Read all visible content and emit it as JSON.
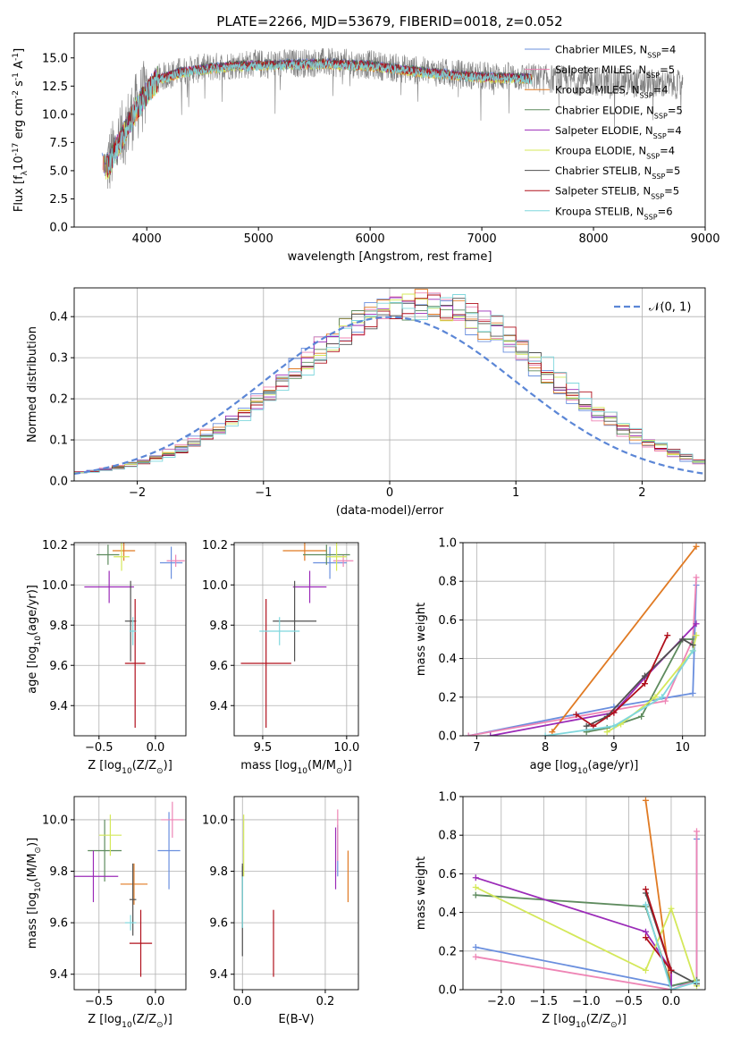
{
  "figure": {
    "title": "PLATE=2266, MJD=53679, FIBERID=0018, z=0.052"
  },
  "model_colors": [
    "#6a8fde",
    "#ee85b5",
    "#e07a23",
    "#5e8b5e",
    "#9b2bb8",
    "#d4e85a",
    "#505050",
    "#b0101c",
    "#7fd7dd"
  ],
  "chart_data": [
    {
      "id": "spectrum",
      "type": "line",
      "title": "PLATE=2266, MJD=53679, FIBERID=0018, z=0.052",
      "xlabel": "wavelength [Angstrom, rest frame]",
      "ylabel": "Flux [f$_\\lambda$10$^{-17}$ erg cm$^{-2}$ s$^{-1}$ A$^{-1}$]",
      "xlim": [
        3350,
        9000
      ],
      "ylim": [
        0,
        17.2
      ],
      "xticks": [
        4000,
        5000,
        6000,
        7000,
        8000,
        9000
      ],
      "yticks": [
        0.0,
        2.5,
        5.0,
        7.5,
        10.0,
        12.5,
        15.0
      ],
      "grid": false,
      "legend_position": "right",
      "legend": [
        "Chabrier MILES, N$_{SSP}$=4",
        "Salpeter MILES, N$_{SSP}$=5",
        "Kroupa MILES, N$_{SSP}$=4",
        "Chabrier ELODIE, N$_{SSP}$=5",
        "Salpeter ELODIE, N$_{SSP}$=4",
        "Kroupa ELODIE, N$_{SSP}$=4",
        "Chabrier STELIB, N$_{SSP}$=5",
        "Salpeter STELIB, N$_{SSP}$=5",
        "Kroupa STELIB, N$_{SSP}$=6"
      ],
      "continuum": {
        "x": [
          3650,
          3700,
          3800,
          3900,
          4000,
          4100,
          4300,
          4500,
          4800,
          5200,
          5600,
          6000,
          6500,
          7000,
          7400,
          7800,
          8300,
          8800
        ],
        "y": [
          5.5,
          6.5,
          8.5,
          10.5,
          12.0,
          13.2,
          13.8,
          14.1,
          14.4,
          14.5,
          14.6,
          14.4,
          13.8,
          13.4,
          13.3,
          13.0,
          12.8,
          12.6
        ]
      },
      "data_range": [
        3640,
        8800
      ],
      "model_range": [
        3600,
        7450
      ]
    },
    {
      "id": "residuals",
      "type": "line",
      "xlabel": "(data-model)/error",
      "ylabel": "Normed distribution",
      "xlim": [
        -2.5,
        2.5
      ],
      "ylim": [
        0,
        0.47
      ],
      "xticks": [
        -2,
        -1,
        0,
        1,
        2
      ],
      "yticks": [
        0.0,
        0.1,
        0.2,
        0.3,
        0.4
      ],
      "grid": true,
      "legend_position": "top-right",
      "series": [
        {
          "name": "$\\mathcal{N}(0,1)$",
          "mean": 0,
          "sigma": 1,
          "style": "dashed"
        }
      ],
      "histogram_peak": 0.42,
      "histogram_center": 0.25,
      "histogram_sigma": 1.0,
      "bin_width": 0.1
    },
    {
      "id": "age_vs_Z",
      "type": "scatter",
      "xlabel": "Z [log$_{10}$(Z/Z$_\\odot$)]",
      "ylabel": "age  [log$_{10}$(age/yr)]",
      "xlim": [
        -0.72,
        0.27
      ],
      "ylim": [
        9.25,
        10.21
      ],
      "xticks": [
        -0.5,
        0.0
      ],
      "yticks": [
        9.4,
        9.6,
        9.8,
        10.0,
        10.2
      ],
      "points": [
        {
          "x": 0.14,
          "y": 10.11,
          "xerr": 0.1,
          "yerr": 0.08
        },
        {
          "x": 0.18,
          "y": 10.12,
          "xerr": 0.08,
          "yerr": 0.03
        },
        {
          "x": -0.28,
          "y": 10.17,
          "xerr": 0.1,
          "yerr": 0.05
        },
        {
          "x": -0.42,
          "y": 10.15,
          "xerr": 0.1,
          "yerr": 0.05
        },
        {
          "x": -0.41,
          "y": 9.99,
          "xerr": 0.22,
          "yerr": 0.08
        },
        {
          "x": -0.3,
          "y": 10.14,
          "xerr": 0.07,
          "yerr": 0.07
        },
        {
          "x": -0.22,
          "y": 9.82,
          "xerr": 0.05,
          "yerr": 0.2
        },
        {
          "x": -0.18,
          "y": 9.61,
          "xerr": 0.09,
          "yerr": 0.32
        },
        {
          "x": -0.2,
          "y": 9.77,
          "xerr": 0.03,
          "yerr": 0.07
        }
      ]
    },
    {
      "id": "age_vs_mass",
      "type": "scatter",
      "xlabel": "mass [log$_{10}$(M/M$_\\odot$)]",
      "ylabel": "",
      "xlim": [
        9.33,
        10.07
      ],
      "ylim": [
        9.25,
        10.21
      ],
      "xticks": [
        9.5,
        10.0
      ],
      "yticks": [
        9.4,
        9.6,
        9.8,
        10.0,
        10.2
      ],
      "points": [
        {
          "x": 9.9,
          "y": 10.11,
          "xerr": 0.1,
          "yerr": 0.08
        },
        {
          "x": 9.98,
          "y": 10.12,
          "xerr": 0.06,
          "yerr": 0.03
        },
        {
          "x": 9.75,
          "y": 10.17,
          "xerr": 0.13,
          "yerr": 0.05
        },
        {
          "x": 9.88,
          "y": 10.15,
          "xerr": 0.14,
          "yerr": 0.05
        },
        {
          "x": 9.78,
          "y": 9.99,
          "xerr": 0.1,
          "yerr": 0.08
        },
        {
          "x": 9.94,
          "y": 10.14,
          "xerr": 0.06,
          "yerr": 0.07
        },
        {
          "x": 9.69,
          "y": 9.82,
          "xerr": 0.13,
          "yerr": 0.2
        },
        {
          "x": 9.52,
          "y": 9.61,
          "xerr": 0.15,
          "yerr": 0.32
        },
        {
          "x": 9.6,
          "y": 9.77,
          "xerr": 0.12,
          "yerr": 0.07
        }
      ]
    },
    {
      "id": "weight_vs_age",
      "type": "line",
      "xlabel": "age  [log$_{10}$(age/yr)]",
      "ylabel": "mass weight",
      "xlim": [
        6.8,
        10.33
      ],
      "ylim": [
        0,
        1.0
      ],
      "xticks": [
        7,
        8,
        9,
        10
      ],
      "yticks": [
        0.0,
        0.2,
        0.4,
        0.6,
        0.8,
        1.0
      ],
      "grid": true,
      "series": [
        {
          "x": [
            6.88,
            9.0,
            10.15,
            10.2
          ],
          "y": [
            0.0,
            0.15,
            0.22,
            0.78
          ]
        },
        {
          "x": [
            6.88,
            9.75,
            10.15,
            10.2
          ],
          "y": [
            0.0,
            0.18,
            0.5,
            0.82
          ]
        },
        {
          "x": [
            8.1,
            10.2
          ],
          "y": [
            0.02,
            0.98
          ]
        },
        {
          "x": [
            8.6,
            8.9,
            9.4,
            10.0,
            10.15
          ],
          "y": [
            0.02,
            0.04,
            0.1,
            0.5,
            0.5
          ]
        },
        {
          "x": [
            7.2,
            9.0,
            9.45,
            10.2
          ],
          "y": [
            0.0,
            0.12,
            0.3,
            0.58
          ]
        },
        {
          "x": [
            8.9,
            9.1,
            9.6,
            10.15,
            10.2
          ],
          "y": [
            0.02,
            0.06,
            0.2,
            0.44,
            0.52
          ]
        },
        {
          "x": [
            8.6,
            8.9,
            9.45,
            10.0,
            10.15
          ],
          "y": [
            0.05,
            0.1,
            0.31,
            0.5,
            0.47
          ]
        },
        {
          "x": [
            8.45,
            8.7,
            9.0,
            9.45,
            9.78
          ],
          "y": [
            0.11,
            0.05,
            0.12,
            0.27,
            0.52
          ]
        },
        {
          "x": [
            8.0,
            9.0,
            9.7,
            10.15
          ],
          "y": [
            0.0,
            0.05,
            0.2,
            0.44
          ]
        }
      ]
    },
    {
      "id": "mass_vs_Z",
      "type": "scatter",
      "xlabel": "Z [log$_{10}$(Z/Z$_\\odot$)]",
      "ylabel": "mass [log$_{10}$(M/M$_\\odot$)]",
      "xlim": [
        -0.72,
        0.27
      ],
      "ylim": [
        9.34,
        10.09
      ],
      "xticks": [
        -0.5,
        0.0
      ],
      "yticks": [
        9.4,
        9.6,
        9.8,
        10.0
      ],
      "points": [
        {
          "x": 0.12,
          "y": 9.88,
          "xerr": 0.1,
          "yerr": 0.15
        },
        {
          "x": 0.15,
          "y": 10.0,
          "xerr": 0.1,
          "yerr": 0.07
        },
        {
          "x": -0.19,
          "y": 9.75,
          "xerr": 0.12,
          "yerr": 0.08
        },
        {
          "x": -0.45,
          "y": 9.88,
          "xerr": 0.15,
          "yerr": 0.12
        },
        {
          "x": -0.55,
          "y": 9.78,
          "xerr": 0.22,
          "yerr": 0.1
        },
        {
          "x": -0.4,
          "y": 9.94,
          "xerr": 0.1,
          "yerr": 0.08
        },
        {
          "x": -0.2,
          "y": 9.69,
          "xerr": 0.03,
          "yerr": 0.14
        },
        {
          "x": -0.13,
          "y": 9.52,
          "xerr": 0.1,
          "yerr": 0.13
        },
        {
          "x": -0.22,
          "y": 9.6,
          "xerr": 0.05,
          "yerr": 0.03
        }
      ]
    },
    {
      "id": "mass_vs_ebv",
      "type": "scatter",
      "xlabel": "E(B-V)",
      "ylabel": "",
      "xlim": [
        -0.02,
        0.28
      ],
      "ylim": [
        9.34,
        10.09
      ],
      "xticks": [
        0.0,
        0.2
      ],
      "yticks": [
        9.4,
        9.6,
        9.8,
        10.0
      ],
      "points": [
        {
          "x": 0.23,
          "y": 9.88,
          "xerr": 0.0,
          "yerr": 0.1
        },
        {
          "x": 0.23,
          "y": 9.94,
          "xerr": 0.0,
          "yerr": 0.1
        },
        {
          "x": 0.255,
          "y": 9.78,
          "xerr": 0.0,
          "yerr": 0.1
        },
        {
          "x": 0.0,
          "y": 9.7,
          "xerr": 0.0,
          "yerr": 0.12
        },
        {
          "x": 0.225,
          "y": 9.85,
          "xerr": 0.0,
          "yerr": 0.12
        },
        {
          "x": 0.003,
          "y": 9.9,
          "xerr": 0.0,
          "yerr": 0.12
        },
        {
          "x": 0.0,
          "y": 9.65,
          "xerr": 0.0,
          "yerr": 0.18
        },
        {
          "x": 0.075,
          "y": 9.52,
          "xerr": 0.0,
          "yerr": 0.13
        },
        {
          "x": 0.0,
          "y": 9.68,
          "xerr": 0.0,
          "yerr": 0.1
        }
      ]
    },
    {
      "id": "weight_vs_Z",
      "type": "line",
      "xlabel": "Z [log$_{10}$(Z/Z$_\\odot$)]",
      "ylabel": "mass weight",
      "xlim": [
        -2.45,
        0.4
      ],
      "ylim": [
        0,
        1.0
      ],
      "xticks": [
        -2.0,
        -1.5,
        -1.0,
        -0.5,
        0.0
      ],
      "yticks": [
        0.0,
        0.2,
        0.4,
        0.6,
        0.8,
        1.0
      ],
      "grid": true,
      "series": [
        {
          "x": [
            -2.3,
            0.0,
            0.3,
            0.3
          ],
          "y": [
            0.22,
            0.02,
            0.04,
            0.78
          ]
        },
        {
          "x": [
            -2.3,
            0.0,
            0.3,
            0.3
          ],
          "y": [
            0.17,
            0.0,
            0.05,
            0.82
          ]
        },
        {
          "x": [
            -0.3,
            0.0
          ],
          "y": [
            0.98,
            0.0
          ]
        },
        {
          "x": [
            -2.3,
            -0.3,
            0.0,
            0.3
          ],
          "y": [
            0.49,
            0.43,
            0.02,
            0.05
          ]
        },
        {
          "x": [
            -2.3,
            -0.3,
            0.0,
            0.0
          ],
          "y": [
            0.58,
            0.3,
            0.1,
            0.0
          ]
        },
        {
          "x": [
            -2.3,
            -0.3,
            0.0,
            0.3
          ],
          "y": [
            0.53,
            0.1,
            0.42,
            0.02
          ]
        },
        {
          "x": [
            -0.3,
            0.0,
            0.3
          ],
          "y": [
            0.5,
            0.1,
            0.03
          ]
        },
        {
          "x": [
            -0.3,
            0.0,
            -0.3
          ],
          "y": [
            0.52,
            0.1,
            0.27
          ]
        },
        {
          "x": [
            -0.3,
            0.0,
            0.3
          ],
          "y": [
            0.44,
            0.0,
            0.04
          ]
        }
      ]
    }
  ]
}
